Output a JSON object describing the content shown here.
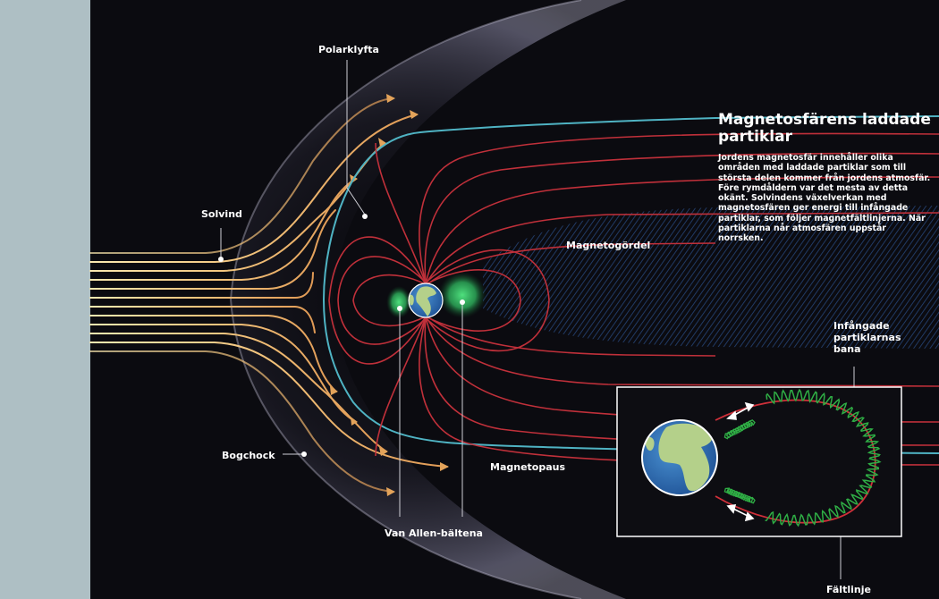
{
  "title": "Magnetosfärens laddade partiklar",
  "description": "Jordens magnetosfär innehåller olika områden med laddade partiklar som till största delen kommer från jordens atmosfär. Före rymdåldern var det mesta av detta okänt. Solvindens växelverkan med magnetosfären ger energi till infångade partiklar, som följer magnetfältlinjerna. När partiklarna når atmosfären uppstår norrsken.",
  "labels": {
    "polar_cusp": "Polarklyfta",
    "solar_wind": "Solvind",
    "bow_shock": "Bogchock",
    "magnetotail": "Magnetogördel",
    "magnetopause": "Magnetopaus",
    "van_allen": "Van Allen-bältena",
    "trapped_path": "Infångade partiklarnas bana",
    "field_line": "Fältlinje"
  },
  "colors": {
    "background": "#0b0b10",
    "sun_panel": "#aebfc4",
    "solar_wind_lines": "#e3a35a",
    "field_lines": "#c0303a",
    "magnetopause": "#4fb3c3",
    "radiation_belts": "#33c46a",
    "tail_hatch": "#2c4f86",
    "earth_ocean": "#2f73b8",
    "earth_land": "#b4d08a",
    "inset_trajectory_red": "#d0303a",
    "inset_trajectory_green": "#2fae45"
  },
  "icons": [
    "earth-globe",
    "double-arrow-icon"
  ]
}
